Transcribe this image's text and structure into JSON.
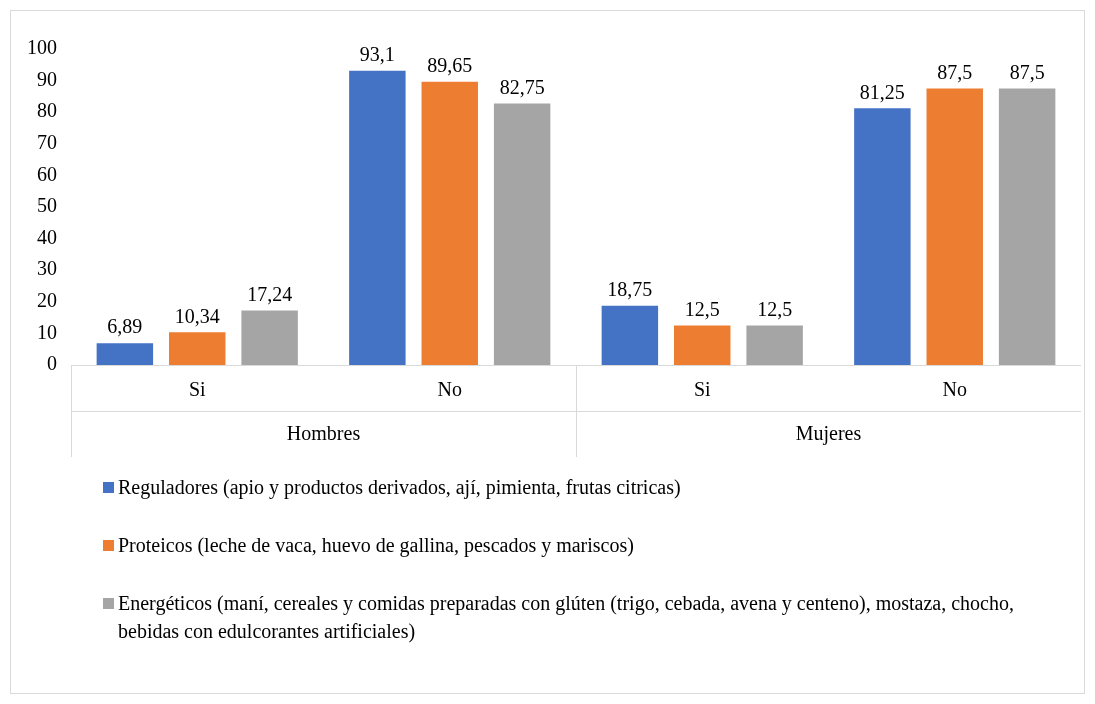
{
  "chart_data": {
    "type": "bar",
    "categories": [
      "Si",
      "No",
      "Si",
      "No"
    ],
    "annotations": [
      "Hombres",
      "Mujeres"
    ],
    "series": [
      {
        "name": "Reguladores (apio y productos derivados, ají, pimienta, frutas citricas)",
        "color": "#4472c4",
        "values": [
          6.89,
          93.1,
          18.75,
          81.25
        ],
        "value_labels": [
          "6,89",
          "93,1",
          "18,75",
          "81,25"
        ]
      },
      {
        "name": "Proteicos (leche de vaca, huevo de gallina, pescados y mariscos)",
        "color": "#ed7d31",
        "values": [
          10.34,
          89.65,
          12.5,
          87.5
        ],
        "value_labels": [
          "10,34",
          "89,65",
          "12,5",
          "87,5"
        ]
      },
      {
        "name": "Energéticos (maní, cereales y comidas preparadas con glúten (trigo, cebada, avena y centeno), mostaza, chocho, bebidas con edulcorantes artificiales)",
        "color": "#a5a5a5",
        "values": [
          17.24,
          82.75,
          12.5,
          87.5
        ],
        "value_labels": [
          "17,24",
          "82,75",
          "12,5",
          "87,5"
        ]
      }
    ],
    "ylim": [
      0,
      100
    ],
    "yticks": [
      0,
      10,
      20,
      30,
      40,
      50,
      60,
      70,
      80,
      90,
      100
    ],
    "grid": false,
    "legend": "bottom"
  }
}
